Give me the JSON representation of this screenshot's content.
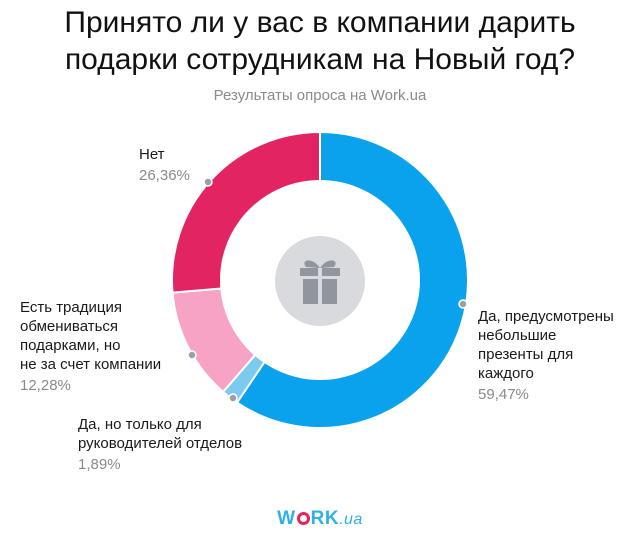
{
  "title_lines": [
    "Принято ли у вас в компании дарить",
    "подарки сотрудникам на Новый год?"
  ],
  "subtitle": "Результаты опроса на Work.ua",
  "chart_data": {
    "type": "pie",
    "donut": true,
    "title": "Принято ли у вас в компании дарить подарки сотрудникам на Новый год?",
    "subtitle": "Результаты опроса на Work.ua",
    "categories": [
      "Да, предусмотрены\nнебольшие\nпрезенты для\nкаждого",
      "Да, но только для\nруководителей отделов",
      "Есть традиция\nобмениваться\nподарками, но\nне за счет компании",
      "Нет"
    ],
    "values": [
      59.47,
      1.89,
      12.28,
      26.36
    ],
    "labels": [
      "59,47%",
      "1,89%",
      "12,28%",
      "26,36%"
    ],
    "colors": [
      "#0aa2ec",
      "#7ccaf0",
      "#f7a3c6",
      "#e22463"
    ]
  },
  "center_icon": "gift-icon",
  "logo": {
    "main": "WORK",
    "suffix": ".ua"
  }
}
